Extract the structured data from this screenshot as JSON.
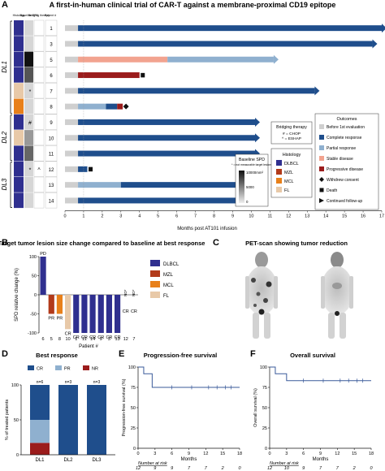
{
  "panelA": {
    "letter": "A",
    "title": "A first-in-human clinical trial of CAR-T against a membrane-proximal CD19 epitope",
    "col_headers": [
      "Histology",
      "Baseline SPD",
      "Bridging therapy",
      "Patient #"
    ],
    "groups": [
      "DL1",
      "DL2",
      "DL3"
    ],
    "xlabel": "Months post AT101 infusion",
    "x_ticks": [
      0,
      1,
      2,
      3,
      4,
      5,
      6,
      7,
      8,
      9,
      10,
      11,
      12,
      13,
      14,
      15,
      16,
      17
    ],
    "patients": [
      {
        "id": "1",
        "hist_color": "#2f2f8f",
        "spd_gray": "#d6d6d6",
        "bridge": "",
        "segments": [
          {
            "from": 0,
            "to": 0.7,
            "type": "before"
          },
          {
            "from": 0.7,
            "to": 17.0,
            "type": "cr"
          }
        ],
        "end_marker": "arrow"
      },
      {
        "id": "3",
        "hist_color": "#2f2f8f",
        "spd_gray": "#d6d6d6",
        "bridge": "",
        "segments": [
          {
            "from": 0,
            "to": 0.7,
            "type": "before"
          },
          {
            "from": 0.7,
            "to": 16.5,
            "type": "cr"
          }
        ],
        "end_marker": "arrow"
      },
      {
        "id": "5",
        "hist_color": "#2f2f8f",
        "spd_gray": "#111111",
        "bridge": "",
        "segments": [
          {
            "from": 0,
            "to": 0.7,
            "type": "before"
          },
          {
            "from": 0.7,
            "to": 5.5,
            "type": "sd"
          },
          {
            "from": 5.5,
            "to": 11.2,
            "type": "pr"
          }
        ],
        "end_marker": "arrow"
      },
      {
        "id": "6",
        "hist_color": "#2f2f8f",
        "spd_gray": "#555555",
        "bridge": "",
        "segments": [
          {
            "from": 0,
            "to": 0.7,
            "type": "before"
          },
          {
            "from": 0.7,
            "to": 4.0,
            "type": "pd"
          }
        ],
        "end_marker": "death"
      },
      {
        "id": "7",
        "hist_color": "#e8c9a8",
        "spd_gray": "#d6d6d6",
        "bridge": "*",
        "segments": [
          {
            "from": 0,
            "to": 0.7,
            "type": "before"
          },
          {
            "from": 0.7,
            "to": 13.4,
            "type": "cr"
          }
        ],
        "end_marker": "arrow"
      },
      {
        "id": "8",
        "hist_color": "#e8801a",
        "spd_gray": "#d6d6d6",
        "bridge": "",
        "segments": [
          {
            "from": 0,
            "to": 0.7,
            "type": "before"
          },
          {
            "from": 0.7,
            "to": 2.2,
            "type": "pr"
          },
          {
            "from": 2.2,
            "to": 2.8,
            "type": "cr"
          },
          {
            "from": 2.8,
            "to": 3.1,
            "type": "pd"
          }
        ],
        "end_marker": "withdrew"
      },
      {
        "id": "9",
        "hist_color": "#2f2f8f",
        "spd_gray": "#d6d6d6",
        "bridge": "#",
        "segments": [
          {
            "from": 0,
            "to": 0.7,
            "type": "before"
          },
          {
            "from": 0.7,
            "to": 10.2,
            "type": "cr"
          }
        ],
        "end_marker": "arrow"
      },
      {
        "id": "10",
        "hist_color": "#e8c9a8",
        "spd_gray": "#999999",
        "bridge": "",
        "segments": [
          {
            "from": 0,
            "to": 0.7,
            "type": "before"
          },
          {
            "from": 0.7,
            "to": 10.2,
            "type": "cr"
          }
        ],
        "end_marker": "arrow"
      },
      {
        "id": "11",
        "hist_color": "#2f2f8f",
        "spd_gray": "#666666",
        "bridge": "",
        "segments": [
          {
            "from": 0,
            "to": 0.7,
            "type": "before"
          },
          {
            "from": 0.7,
            "to": 10.2,
            "type": "cr"
          }
        ],
        "end_marker": "arrow"
      },
      {
        "id": "12",
        "hist_color": "#2f2f8f",
        "spd_gray": "#d6d6d6",
        "bridge": "*",
        "bridge2": "^",
        "segments": [
          {
            "from": 0,
            "to": 0.7,
            "type": "before"
          },
          {
            "from": 0.7,
            "to": 1.2,
            "type": "cr"
          }
        ],
        "end_marker": "death"
      },
      {
        "id": "13",
        "hist_color": "#2f2f8f",
        "spd_gray": "#d6d6d6",
        "bridge": "",
        "segments": [
          {
            "from": 0,
            "to": 0.7,
            "type": "before"
          },
          {
            "from": 0.7,
            "to": 3.0,
            "type": "pr"
          },
          {
            "from": 3.0,
            "to": 10.2,
            "type": "cr"
          }
        ],
        "end_marker": "arrow"
      },
      {
        "id": "14",
        "hist_color": "#2f2f8f",
        "spd_gray": "#d6d6d6",
        "bridge": "",
        "segments": [
          {
            "from": 0,
            "to": 0.7,
            "type": "before"
          },
          {
            "from": 0.7,
            "to": 10.2,
            "type": "cr"
          }
        ],
        "end_marker": "arrow"
      }
    ],
    "bridging_box": {
      "title": "Bridging therapy",
      "items": [
        "# = CHOP",
        "^ = ESHAP"
      ]
    },
    "spd_box": {
      "title": "Baseline SPD",
      "note": "* = not measurable target lesions",
      "ticks": [
        "10000mm²",
        "5000",
        "0"
      ]
    },
    "histology_box": {
      "title": "Histology",
      "items": [
        {
          "label": "DLBCL",
          "color": "#2f2f8f"
        },
        {
          "label": "MZL",
          "color": "#b23a1a"
        },
        {
          "label": "MCL",
          "color": "#e8801a"
        },
        {
          "label": "FL",
          "color": "#e8c9a8"
        }
      ]
    },
    "outcomes_box": {
      "title": "Outcomes",
      "items": [
        {
          "label": "Before 1st evaluation",
          "kind": "bar",
          "color": "#cfcfcf"
        },
        {
          "label": "Complete response",
          "kind": "bar",
          "color": "#1f4e8c"
        },
        {
          "label": "Partial response",
          "kind": "bar",
          "color": "#8fb0cf"
        },
        {
          "label": "Stable disease",
          "kind": "bar",
          "color": "#f2a38f"
        },
        {
          "label": "Progressive disease",
          "kind": "bar",
          "color": "#9b1c1c"
        },
        {
          "label": "Withdrew consent",
          "kind": "diamond",
          "color": "#111111"
        },
        {
          "label": "Death",
          "kind": "square",
          "color": "#111111"
        },
        {
          "label": "Continued follow-up",
          "kind": "arrow",
          "color": "#111111"
        }
      ]
    },
    "colors": {
      "before": "#cfcfcf",
      "cr": "#1f4e8c",
      "pr": "#8fb0cf",
      "sd": "#f2a38f",
      "pd": "#9b1c1c"
    }
  },
  "chart_data": [
    {
      "type": "bar",
      "title": "Target tumor lesion size change compared to baseline at best response",
      "ylabel": "SPD relative change (%)",
      "xlabel": "Patient #",
      "ylim": [
        -100,
        100
      ],
      "y_ticks": [
        100,
        50,
        0,
        -50,
        -100
      ],
      "categories": [
        "6",
        "5",
        "8",
        "10",
        "1",
        "11",
        "14",
        "9",
        "3",
        "13",
        "12",
        "7"
      ],
      "values": [
        100,
        -50,
        -50,
        -90,
        -100,
        -100,
        -100,
        -100,
        -100,
        -100,
        0,
        0
      ],
      "bar_colors": [
        "#2f2f8f",
        "#b23a1a",
        "#e8801a",
        "#e8c9a8",
        "#2f2f8f",
        "#2f2f8f",
        "#2f2f8f",
        "#2f2f8f",
        "#2f2f8f",
        "#2f2f8f",
        "#2f2f8f",
        "#e8c9a8"
      ],
      "labels": [
        "PD",
        "PR",
        "PR",
        "CR",
        "CR",
        "CR",
        "CR",
        "CR",
        "CR",
        "CR",
        "CR",
        "CR"
      ],
      "nd": [
        "",
        "",
        "",
        "",
        "",
        "",
        "",
        "",
        "",
        "",
        "ND*",
        "ND*"
      ],
      "legend": [
        {
          "label": "DLBCL",
          "color": "#2f2f8f"
        },
        {
          "label": "MZL",
          "color": "#b23a1a"
        },
        {
          "label": "MCL",
          "color": "#e8801a"
        },
        {
          "label": "FL",
          "color": "#e8c9a8"
        }
      ],
      "legend_placement": "right"
    },
    {
      "type": "bar",
      "title": "Best response",
      "ylabel": "% of treated patients",
      "categories": [
        "DL1",
        "DL2",
        "DL3"
      ],
      "n_labels": [
        "n=6",
        "n=3",
        "n=3"
      ],
      "ylim": [
        0,
        100
      ],
      "y_ticks": [
        100,
        50,
        0
      ],
      "series": [
        {
          "name": "CR",
          "color": "#1f4e8c",
          "values": [
            50,
            100,
            100
          ]
        },
        {
          "name": "PR",
          "color": "#8fb0cf",
          "values": [
            33,
            0,
            0
          ]
        },
        {
          "name": "NR",
          "color": "#9b1c1c",
          "values": [
            17,
            0,
            0
          ]
        }
      ],
      "legend_placement": "top"
    },
    {
      "type": "line",
      "title": "Progression-free survival",
      "ylabel": "Progression-free survival (%)",
      "xlabel": "Months",
      "xlim": [
        0,
        18
      ],
      "ylim": [
        0,
        100
      ],
      "x_ticks": [
        0,
        3,
        6,
        9,
        12,
        15,
        18
      ],
      "y_ticks": [
        0,
        25,
        50,
        75,
        100
      ],
      "steps": [
        [
          0,
          100
        ],
        [
          1,
          100
        ],
        [
          1,
          91.7
        ],
        [
          2.5,
          91.7
        ],
        [
          2.5,
          75
        ],
        [
          18,
          75
        ]
      ],
      "censor_x": [
        6,
        9.5,
        12.5,
        14,
        15.5,
        16.5
      ],
      "risk_label": "Number at risk",
      "risk": [
        "12",
        "9",
        "9",
        "7",
        "7",
        "2",
        "0"
      ],
      "color": "#3a5a9a"
    },
    {
      "type": "line",
      "title": "Overall survival",
      "ylabel": "Overall survival (%)",
      "xlabel": "Months",
      "xlim": [
        0,
        18
      ],
      "ylim": [
        0,
        100
      ],
      "x_ticks": [
        0,
        3,
        6,
        9,
        12,
        15,
        18
      ],
      "y_ticks": [
        0,
        25,
        50,
        75,
        100
      ],
      "steps": [
        [
          0,
          100
        ],
        [
          1,
          100
        ],
        [
          1,
          91.7
        ],
        [
          3,
          91.7
        ],
        [
          3,
          83.3
        ],
        [
          18,
          83.3
        ]
      ],
      "censor_x": [
        6,
        9.5,
        12.5,
        14,
        15.5,
        16.5
      ],
      "risk_label": "Number at risk",
      "risk": [
        "12",
        "10",
        "9",
        "7",
        "7",
        "2",
        "0"
      ],
      "color": "#3a5a9a"
    }
  ],
  "panelB": {
    "letter": "B"
  },
  "panelC": {
    "letter": "C",
    "title": "PET-scan showing tumor reduction"
  },
  "panelD": {
    "letter": "D"
  },
  "panelE": {
    "letter": "E"
  },
  "panelF": {
    "letter": "F"
  }
}
